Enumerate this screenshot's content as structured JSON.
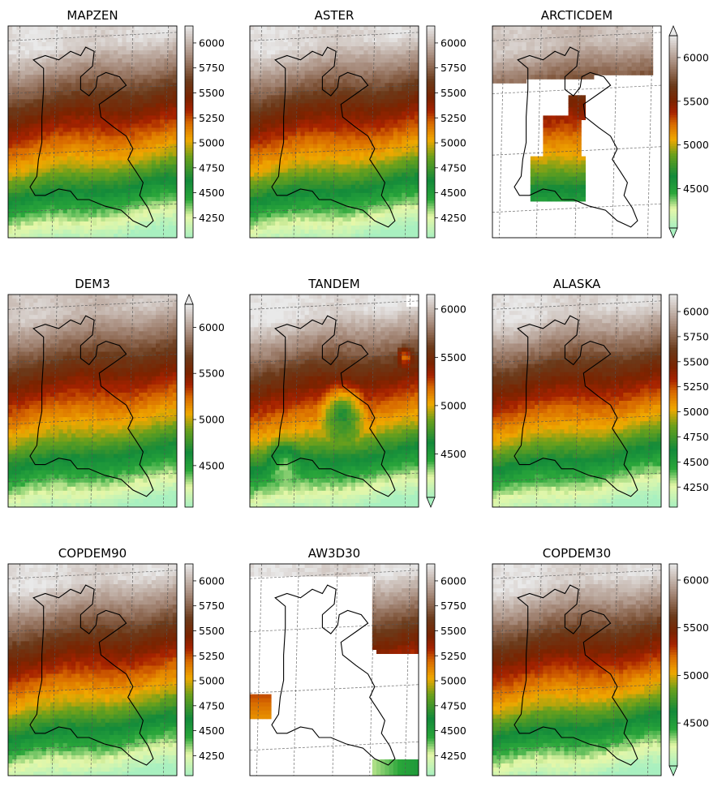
{
  "chart_data": [
    {
      "type": "heatmap",
      "title": "MAPZEN",
      "colorbar_ticks": [
        4250,
        4500,
        4750,
        5000,
        5250,
        5500,
        5750,
        6000
      ],
      "clim": [
        4050,
        6170
      ],
      "extend": "neither",
      "coverage": "full"
    },
    {
      "type": "heatmap",
      "title": "ASTER",
      "colorbar_ticks": [
        4250,
        4500,
        4750,
        5000,
        5250,
        5500,
        5750,
        6000
      ],
      "clim": [
        4050,
        6170
      ],
      "extend": "neither",
      "coverage": "full"
    },
    {
      "type": "heatmap",
      "title": "ARCTICDEM",
      "colorbar_ticks": [
        4500,
        5000,
        5500,
        6000
      ],
      "clim": [
        4050,
        6250
      ],
      "extend": "both",
      "coverage": "partial"
    },
    {
      "type": "heatmap",
      "title": "DEM3",
      "colorbar_ticks": [
        4500,
        5000,
        5500,
        6000
      ],
      "clim": [
        4050,
        6250
      ],
      "extend": "max",
      "coverage": "full"
    },
    {
      "type": "heatmap",
      "title": "TANDEM",
      "colorbar_ticks": [
        4500,
        5000,
        5500,
        6000
      ],
      "clim": [
        4050,
        6150
      ],
      "extend": "min",
      "coverage": "full-with-artifacts"
    },
    {
      "type": "heatmap",
      "title": "ALASKA",
      "colorbar_ticks": [
        4250,
        4500,
        4750,
        5000,
        5250,
        5500,
        5750,
        6000
      ],
      "clim": [
        4050,
        6170
      ],
      "extend": "neither",
      "coverage": "full"
    },
    {
      "type": "heatmap",
      "title": "COPDEM90",
      "colorbar_ticks": [
        4250,
        4500,
        4750,
        5000,
        5250,
        5500,
        5750,
        6000
      ],
      "clim": [
        4050,
        6170
      ],
      "extend": "neither",
      "coverage": "full"
    },
    {
      "type": "heatmap",
      "title": "AW3D30",
      "colorbar_ticks": [
        4250,
        4500,
        4750,
        5000,
        5250,
        5500,
        5750,
        6000
      ],
      "clim": [
        4050,
        6170
      ],
      "extend": "neither",
      "coverage": "sparse"
    },
    {
      "type": "heatmap",
      "title": "COPDEM30",
      "colorbar_ticks": [
        4500,
        5000,
        5500,
        6000
      ],
      "clim": [
        4050,
        6170
      ],
      "extend": "min",
      "coverage": "full"
    }
  ],
  "colormap": {
    "name": "terrain-like",
    "stops": [
      [
        0.0,
        "#a9f0c0"
      ],
      [
        0.1,
        "#e6f7a8"
      ],
      [
        0.18,
        "#2aa63a"
      ],
      [
        0.27,
        "#138a3a"
      ],
      [
        0.38,
        "#6aa01c"
      ],
      [
        0.46,
        "#f0a800"
      ],
      [
        0.54,
        "#d86a00"
      ],
      [
        0.6,
        "#a62200"
      ],
      [
        0.66,
        "#7a2300"
      ],
      [
        0.74,
        "#6b3a1a"
      ],
      [
        0.86,
        "#a88d7e"
      ],
      [
        1.0,
        "#e9e9e9"
      ]
    ]
  }
}
